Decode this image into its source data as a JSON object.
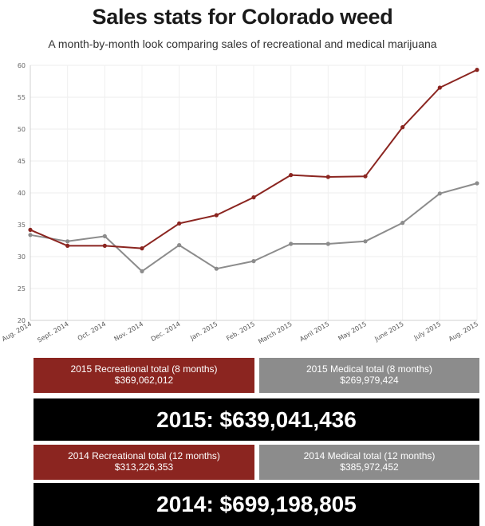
{
  "header": {
    "title": "Sales stats for Colorado weed",
    "subtitle": "A month-by-month look comparing sales of recreational and medical marijuana"
  },
  "colors": {
    "recreational": "#8b2520",
    "medical": "#8c8c8c",
    "total_bg": "#000000"
  },
  "chart_data": {
    "type": "line",
    "categories": [
      "Aug. 2014",
      "Sept. 2014",
      "Oct. 2014",
      "Nov. 2014",
      "Dec. 2014",
      "Jan. 2015",
      "Feb. 2015",
      "March 2015",
      "April 2015",
      "May 2015",
      "June 2015",
      "July 2015",
      "Aug. 2015"
    ],
    "series": [
      {
        "key": "recreational",
        "values": [
          34.2,
          31.7,
          31.7,
          31.3,
          35.2,
          36.5,
          39.3,
          42.8,
          42.5,
          42.6,
          50.3,
          56.5,
          59.3
        ]
      },
      {
        "key": "medical",
        "values": [
          33.4,
          32.4,
          33.2,
          27.7,
          31.8,
          28.1,
          29.3,
          32.0,
          32.0,
          32.4,
          35.3,
          39.9,
          41.5
        ]
      }
    ],
    "ylim": [
      20,
      60
    ],
    "yticks": [
      "20",
      "25",
      "30",
      "35",
      "40",
      "45",
      "50",
      "55",
      "60"
    ],
    "grid": true
  },
  "summary": {
    "rec_2015": {
      "label": "2015 Recreational total (8 months)",
      "value": "$369,062,012"
    },
    "med_2015": {
      "label": "2015 Medical total (8 months)",
      "value": "$269,979,424"
    },
    "total_2015": "2015: $639,041,436",
    "rec_2014": {
      "label": "2014 Recreational total (12 months)",
      "value": "$313,226,353"
    },
    "med_2014": {
      "label": "2014 Medical total (12 months)",
      "value": "$385,972,452"
    },
    "total_2014": "2014: $699,198,805"
  }
}
